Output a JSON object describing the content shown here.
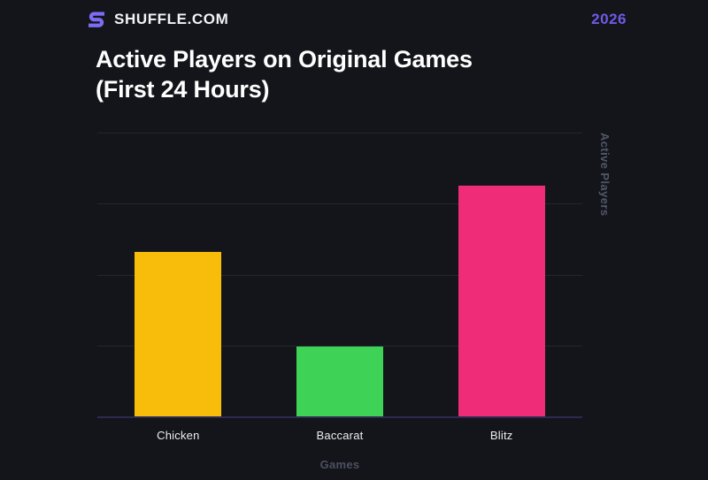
{
  "page": {
    "background": "#14151a"
  },
  "header": {
    "brand": "SHUFFLE.COM",
    "year": "2026"
  },
  "title": {
    "line1": "Active Players on Original Games",
    "line2": "(First 24 Hours)"
  },
  "chart_data": {
    "type": "bar",
    "title": "Active Players on Original Games (First 24 Hours)",
    "xlabel": "Games",
    "ylabel": "Active Players",
    "categories": [
      "Chicken",
      "Baccarat",
      "Blitz"
    ],
    "values": [
      2.32,
      0.98,
      3.25
    ],
    "ylim": [
      0,
      4
    ],
    "gridline_interval": 1,
    "grid": "horizontal",
    "y_tick_labels_visible": false,
    "legend_position": "none",
    "bar_colors": [
      "#f8bc0b",
      "#3ed356",
      "#ef2c78"
    ]
  },
  "colors": {
    "background": "#14151a",
    "accent_purple": "#6e5ae8",
    "logo_purple": "#7b6cf3",
    "gridline": "#25262d",
    "axis_baseline": "#2d2a52",
    "muted_label": "#4a5160",
    "title_text": "#ffffff",
    "bar_yellow": "#f8bc0b",
    "bar_green": "#3ed356",
    "bar_pink": "#ef2c78"
  }
}
